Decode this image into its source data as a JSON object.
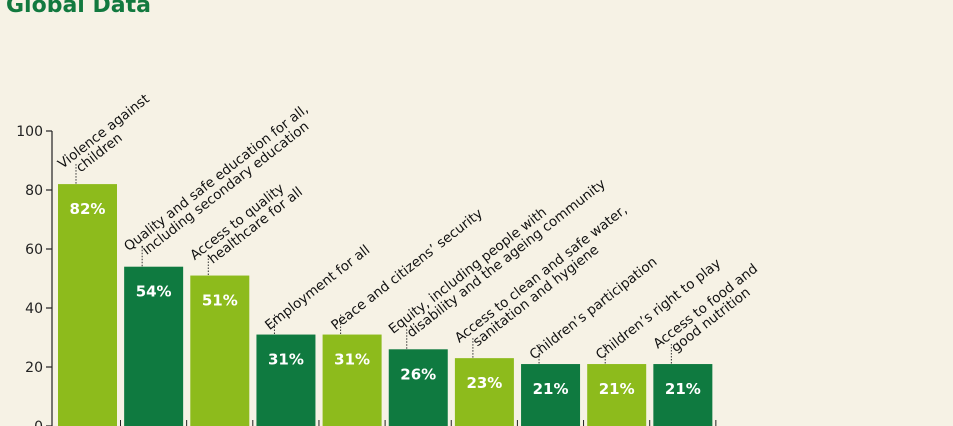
{
  "title": "Global Data",
  "colors": {
    "title": "#12793f",
    "dark": "#0f7a40",
    "light": "#8dbb1c",
    "axis": "#222222",
    "label_bg": "#f6f2e5"
  },
  "chart_data": {
    "type": "bar",
    "title": "Global Data",
    "xlabel": "",
    "ylabel": "",
    "ylim": [
      0,
      100
    ],
    "yticks": [
      0,
      20,
      40,
      60,
      80,
      100
    ],
    "grid": false,
    "categories": [
      [
        "Violence against",
        "children"
      ],
      [
        "Quality and safe education for all,",
        "including secondary education"
      ],
      [
        "Access to quality",
        "healthcare for all"
      ],
      [
        "Employment for all"
      ],
      [
        "Peace and citizens’ security"
      ],
      [
        "Equity, including people with",
        "disability and the ageing community"
      ],
      [
        "Access to clean and safe water,",
        "sanitation and hygiene"
      ],
      [
        "Children’s participation"
      ],
      [
        "Children’s right to play"
      ],
      [
        "Access to food and",
        "good nutrition"
      ]
    ],
    "values": [
      82,
      54,
      51,
      31,
      31,
      26,
      23,
      21,
      21,
      21
    ],
    "value_labels": [
      "82%",
      "54%",
      "51%",
      "31%",
      "31%",
      "26%",
      "23%",
      "21%",
      "21%",
      "21%"
    ],
    "bar_colors": [
      "light",
      "dark",
      "light",
      "dark",
      "light",
      "dark",
      "light",
      "dark",
      "light",
      "dark"
    ]
  }
}
